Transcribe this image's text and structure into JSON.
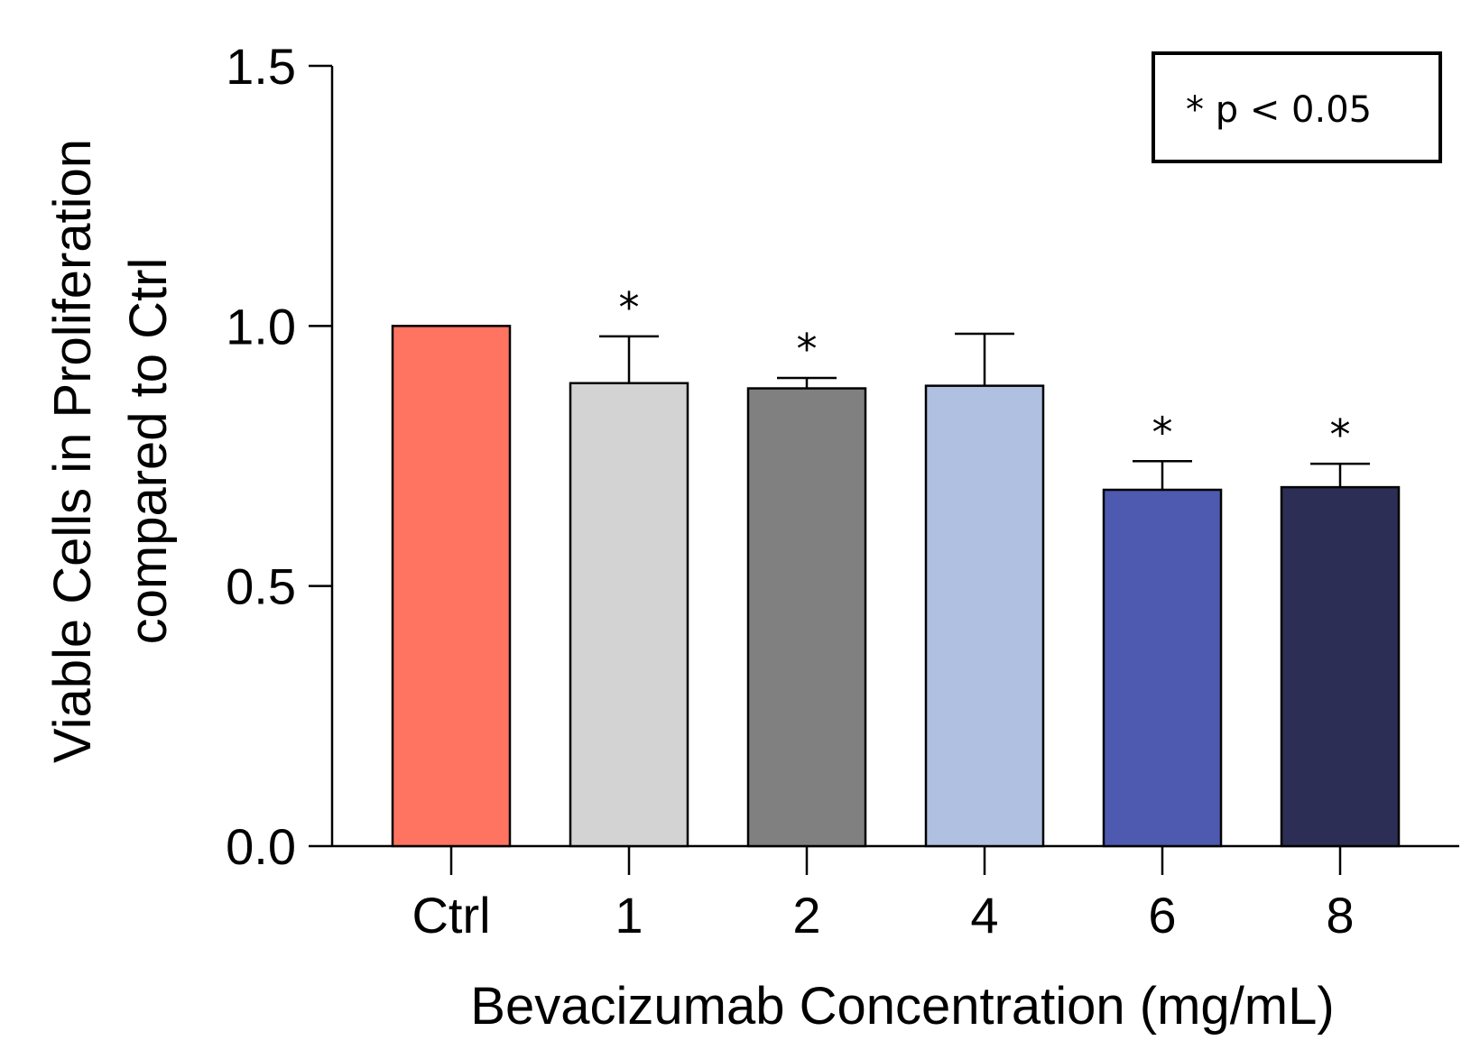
{
  "chart_data": {
    "type": "bar",
    "title": "",
    "xlabel": "Bevacizumab Concentration (mg/mL)",
    "ylabel_lines": [
      "Viable Cells in Proliferation",
      "compared to Ctrl"
    ],
    "ylim": [
      0,
      1.5
    ],
    "yticks": [
      0.0,
      0.5,
      1.0,
      1.5
    ],
    "ytick_labels": [
      "0.0",
      "0.5",
      "1.0",
      "1.5"
    ],
    "grid": false,
    "categories": [
      "Ctrl",
      "1",
      "2",
      "4",
      "6",
      "8"
    ],
    "values": [
      1.0,
      0.89,
      0.88,
      0.885,
      0.685,
      0.69
    ],
    "errors": [
      0.0,
      0.09,
      0.02,
      0.1,
      0.055,
      0.045
    ],
    "significant": [
      false,
      true,
      true,
      false,
      true,
      true
    ],
    "significance_marker": "*",
    "colors": [
      "#FF7361",
      "#D3D3D3",
      "#808080",
      "#B0C0E0",
      "#4E5AB0",
      "#2D2E55"
    ],
    "legend": {
      "text": "* p < 0.05",
      "position": "top-right"
    }
  }
}
